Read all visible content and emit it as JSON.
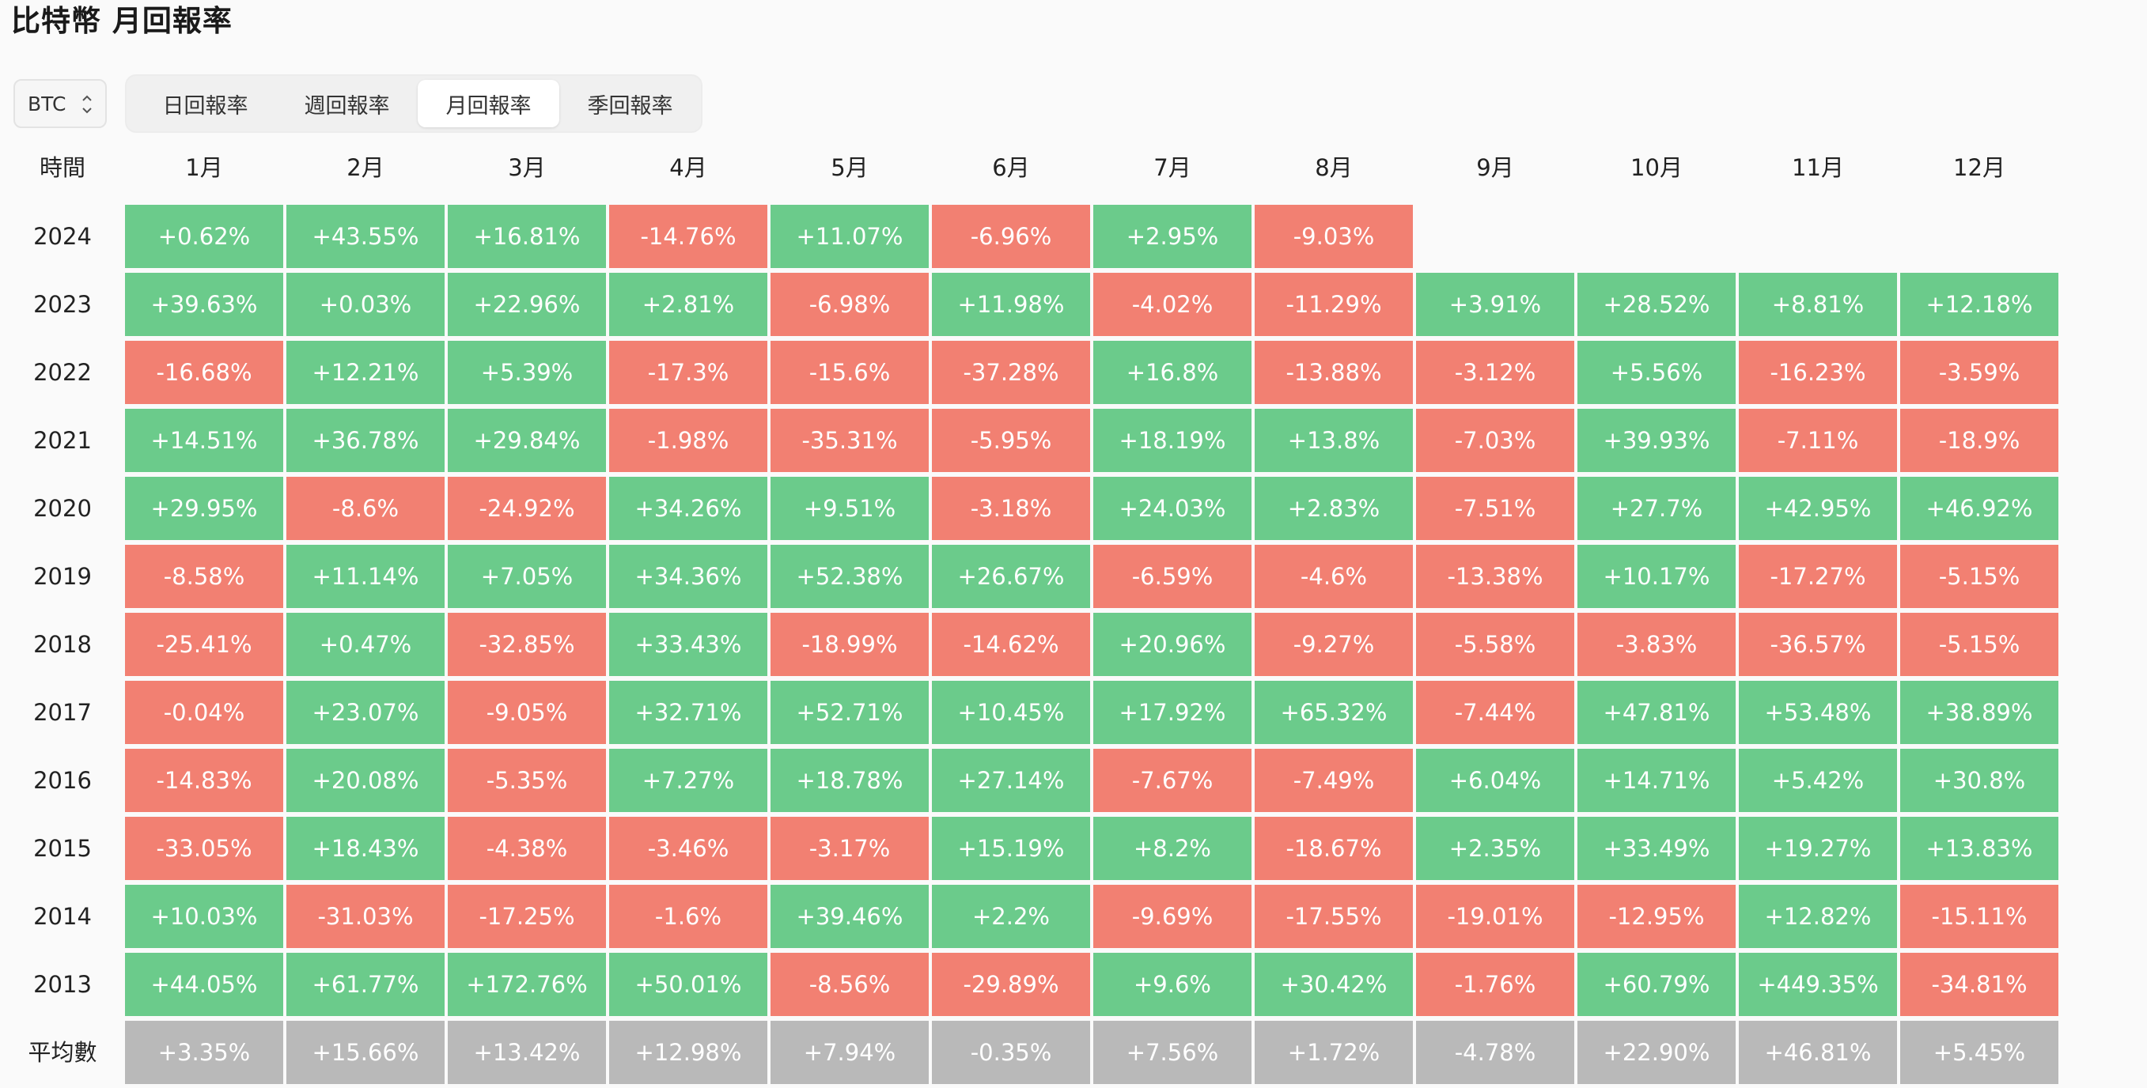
{
  "page": {
    "title": "比特幣 月回報率"
  },
  "selector": {
    "value": "BTC",
    "icon": "chevron-up-down-icon"
  },
  "tabs": [
    {
      "label": "日回報率",
      "active": false
    },
    {
      "label": "週回報率",
      "active": false
    },
    {
      "label": "月回報率",
      "active": true
    },
    {
      "label": "季回報率",
      "active": false
    }
  ],
  "colors": {
    "positive": "#6bcb8b",
    "negative": "#f28072",
    "average": "#b9b9b9"
  },
  "table": {
    "corner_label": "時間",
    "months": [
      "1月",
      "2月",
      "3月",
      "4月",
      "5月",
      "6月",
      "7月",
      "8月",
      "9月",
      "10月",
      "11月",
      "12月"
    ],
    "rows": [
      {
        "year": "2024",
        "values": [
          "+0.62%",
          "+43.55%",
          "+16.81%",
          "-14.76%",
          "+11.07%",
          "-6.96%",
          "+2.95%",
          "-9.03%",
          "",
          "",
          "",
          ""
        ]
      },
      {
        "year": "2023",
        "values": [
          "+39.63%",
          "+0.03%",
          "+22.96%",
          "+2.81%",
          "-6.98%",
          "+11.98%",
          "-4.02%",
          "-11.29%",
          "+3.91%",
          "+28.52%",
          "+8.81%",
          "+12.18%"
        ]
      },
      {
        "year": "2022",
        "values": [
          "-16.68%",
          "+12.21%",
          "+5.39%",
          "-17.3%",
          "-15.6%",
          "-37.28%",
          "+16.8%",
          "-13.88%",
          "-3.12%",
          "+5.56%",
          "-16.23%",
          "-3.59%"
        ]
      },
      {
        "year": "2021",
        "values": [
          "+14.51%",
          "+36.78%",
          "+29.84%",
          "-1.98%",
          "-35.31%",
          "-5.95%",
          "+18.19%",
          "+13.8%",
          "-7.03%",
          "+39.93%",
          "-7.11%",
          "-18.9%"
        ]
      },
      {
        "year": "2020",
        "values": [
          "+29.95%",
          "-8.6%",
          "-24.92%",
          "+34.26%",
          "+9.51%",
          "-3.18%",
          "+24.03%",
          "+2.83%",
          "-7.51%",
          "+27.7%",
          "+42.95%",
          "+46.92%"
        ]
      },
      {
        "year": "2019",
        "values": [
          "-8.58%",
          "+11.14%",
          "+7.05%",
          "+34.36%",
          "+52.38%",
          "+26.67%",
          "-6.59%",
          "-4.6%",
          "-13.38%",
          "+10.17%",
          "-17.27%",
          "-5.15%"
        ]
      },
      {
        "year": "2018",
        "values": [
          "-25.41%",
          "+0.47%",
          "-32.85%",
          "+33.43%",
          "-18.99%",
          "-14.62%",
          "+20.96%",
          "-9.27%",
          "-5.58%",
          "-3.83%",
          "-36.57%",
          "-5.15%"
        ]
      },
      {
        "year": "2017",
        "values": [
          "-0.04%",
          "+23.07%",
          "-9.05%",
          "+32.71%",
          "+52.71%",
          "+10.45%",
          "+17.92%",
          "+65.32%",
          "-7.44%",
          "+47.81%",
          "+53.48%",
          "+38.89%"
        ]
      },
      {
        "year": "2016",
        "values": [
          "-14.83%",
          "+20.08%",
          "-5.35%",
          "+7.27%",
          "+18.78%",
          "+27.14%",
          "-7.67%",
          "-7.49%",
          "+6.04%",
          "+14.71%",
          "+5.42%",
          "+30.8%"
        ]
      },
      {
        "year": "2015",
        "values": [
          "-33.05%",
          "+18.43%",
          "-4.38%",
          "-3.46%",
          "-3.17%",
          "+15.19%",
          "+8.2%",
          "-18.67%",
          "+2.35%",
          "+33.49%",
          "+19.27%",
          "+13.83%"
        ]
      },
      {
        "year": "2014",
        "values": [
          "+10.03%",
          "-31.03%",
          "-17.25%",
          "-1.6%",
          "+39.46%",
          "+2.2%",
          "-9.69%",
          "-17.55%",
          "-19.01%",
          "-12.95%",
          "+12.82%",
          "-15.11%"
        ]
      },
      {
        "year": "2013",
        "values": [
          "+44.05%",
          "+61.77%",
          "+172.76%",
          "+50.01%",
          "-8.56%",
          "-29.89%",
          "+9.6%",
          "+30.42%",
          "-1.76%",
          "+60.79%",
          "+449.35%",
          "-34.81%"
        ]
      }
    ],
    "average": {
      "label": "平均數",
      "values": [
        "+3.35%",
        "+15.66%",
        "+13.42%",
        "+12.98%",
        "+7.94%",
        "-0.35%",
        "+7.56%",
        "+1.72%",
        "-4.78%",
        "+22.90%",
        "+46.81%",
        "+5.45%"
      ]
    }
  }
}
